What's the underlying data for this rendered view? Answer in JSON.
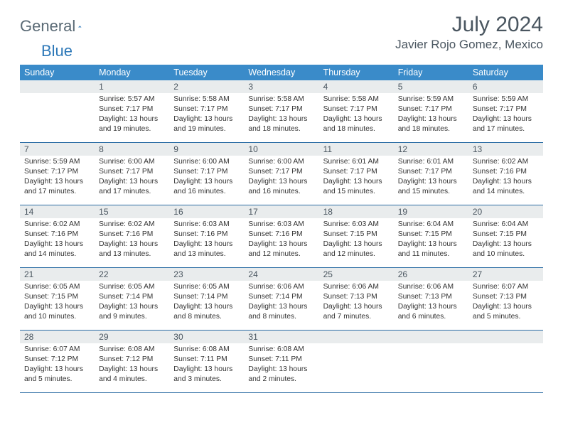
{
  "brand": {
    "part1": "General",
    "part2": "Blue"
  },
  "title": {
    "month": "July 2024",
    "location": "Javier Rojo Gomez, Mexico"
  },
  "header_color": "#3a8bc9",
  "day_header_bg": "#e9eced",
  "divider_color": "#2d6ea5",
  "weekdays": [
    "Sunday",
    "Monday",
    "Tuesday",
    "Wednesday",
    "Thursday",
    "Friday",
    "Saturday"
  ],
  "weeks": [
    [
      null,
      {
        "n": "1",
        "sr": "5:57 AM",
        "ss": "7:17 PM",
        "dl1": "Daylight: 13 hours",
        "dl2": "and 19 minutes."
      },
      {
        "n": "2",
        "sr": "5:58 AM",
        "ss": "7:17 PM",
        "dl1": "Daylight: 13 hours",
        "dl2": "and 19 minutes."
      },
      {
        "n": "3",
        "sr": "5:58 AM",
        "ss": "7:17 PM",
        "dl1": "Daylight: 13 hours",
        "dl2": "and 18 minutes."
      },
      {
        "n": "4",
        "sr": "5:58 AM",
        "ss": "7:17 PM",
        "dl1": "Daylight: 13 hours",
        "dl2": "and 18 minutes."
      },
      {
        "n": "5",
        "sr": "5:59 AM",
        "ss": "7:17 PM",
        "dl1": "Daylight: 13 hours",
        "dl2": "and 18 minutes."
      },
      {
        "n": "6",
        "sr": "5:59 AM",
        "ss": "7:17 PM",
        "dl1": "Daylight: 13 hours",
        "dl2": "and 17 minutes."
      }
    ],
    [
      {
        "n": "7",
        "sr": "5:59 AM",
        "ss": "7:17 PM",
        "dl1": "Daylight: 13 hours",
        "dl2": "and 17 minutes."
      },
      {
        "n": "8",
        "sr": "6:00 AM",
        "ss": "7:17 PM",
        "dl1": "Daylight: 13 hours",
        "dl2": "and 17 minutes."
      },
      {
        "n": "9",
        "sr": "6:00 AM",
        "ss": "7:17 PM",
        "dl1": "Daylight: 13 hours",
        "dl2": "and 16 minutes."
      },
      {
        "n": "10",
        "sr": "6:00 AM",
        "ss": "7:17 PM",
        "dl1": "Daylight: 13 hours",
        "dl2": "and 16 minutes."
      },
      {
        "n": "11",
        "sr": "6:01 AM",
        "ss": "7:17 PM",
        "dl1": "Daylight: 13 hours",
        "dl2": "and 15 minutes."
      },
      {
        "n": "12",
        "sr": "6:01 AM",
        "ss": "7:17 PM",
        "dl1": "Daylight: 13 hours",
        "dl2": "and 15 minutes."
      },
      {
        "n": "13",
        "sr": "6:02 AM",
        "ss": "7:16 PM",
        "dl1": "Daylight: 13 hours",
        "dl2": "and 14 minutes."
      }
    ],
    [
      {
        "n": "14",
        "sr": "6:02 AM",
        "ss": "7:16 PM",
        "dl1": "Daylight: 13 hours",
        "dl2": "and 14 minutes."
      },
      {
        "n": "15",
        "sr": "6:02 AM",
        "ss": "7:16 PM",
        "dl1": "Daylight: 13 hours",
        "dl2": "and 13 minutes."
      },
      {
        "n": "16",
        "sr": "6:03 AM",
        "ss": "7:16 PM",
        "dl1": "Daylight: 13 hours",
        "dl2": "and 13 minutes."
      },
      {
        "n": "17",
        "sr": "6:03 AM",
        "ss": "7:16 PM",
        "dl1": "Daylight: 13 hours",
        "dl2": "and 12 minutes."
      },
      {
        "n": "18",
        "sr": "6:03 AM",
        "ss": "7:15 PM",
        "dl1": "Daylight: 13 hours",
        "dl2": "and 12 minutes."
      },
      {
        "n": "19",
        "sr": "6:04 AM",
        "ss": "7:15 PM",
        "dl1": "Daylight: 13 hours",
        "dl2": "and 11 minutes."
      },
      {
        "n": "20",
        "sr": "6:04 AM",
        "ss": "7:15 PM",
        "dl1": "Daylight: 13 hours",
        "dl2": "and 10 minutes."
      }
    ],
    [
      {
        "n": "21",
        "sr": "6:05 AM",
        "ss": "7:15 PM",
        "dl1": "Daylight: 13 hours",
        "dl2": "and 10 minutes."
      },
      {
        "n": "22",
        "sr": "6:05 AM",
        "ss": "7:14 PM",
        "dl1": "Daylight: 13 hours",
        "dl2": "and 9 minutes."
      },
      {
        "n": "23",
        "sr": "6:05 AM",
        "ss": "7:14 PM",
        "dl1": "Daylight: 13 hours",
        "dl2": "and 8 minutes."
      },
      {
        "n": "24",
        "sr": "6:06 AM",
        "ss": "7:14 PM",
        "dl1": "Daylight: 13 hours",
        "dl2": "and 8 minutes."
      },
      {
        "n": "25",
        "sr": "6:06 AM",
        "ss": "7:13 PM",
        "dl1": "Daylight: 13 hours",
        "dl2": "and 7 minutes."
      },
      {
        "n": "26",
        "sr": "6:06 AM",
        "ss": "7:13 PM",
        "dl1": "Daylight: 13 hours",
        "dl2": "and 6 minutes."
      },
      {
        "n": "27",
        "sr": "6:07 AM",
        "ss": "7:13 PM",
        "dl1": "Daylight: 13 hours",
        "dl2": "and 5 minutes."
      }
    ],
    [
      {
        "n": "28",
        "sr": "6:07 AM",
        "ss": "7:12 PM",
        "dl1": "Daylight: 13 hours",
        "dl2": "and 5 minutes."
      },
      {
        "n": "29",
        "sr": "6:08 AM",
        "ss": "7:12 PM",
        "dl1": "Daylight: 13 hours",
        "dl2": "and 4 minutes."
      },
      {
        "n": "30",
        "sr": "6:08 AM",
        "ss": "7:11 PM",
        "dl1": "Daylight: 13 hours",
        "dl2": "and 3 minutes."
      },
      {
        "n": "31",
        "sr": "6:08 AM",
        "ss": "7:11 PM",
        "dl1": "Daylight: 13 hours",
        "dl2": "and 2 minutes."
      },
      null,
      null,
      null
    ]
  ]
}
